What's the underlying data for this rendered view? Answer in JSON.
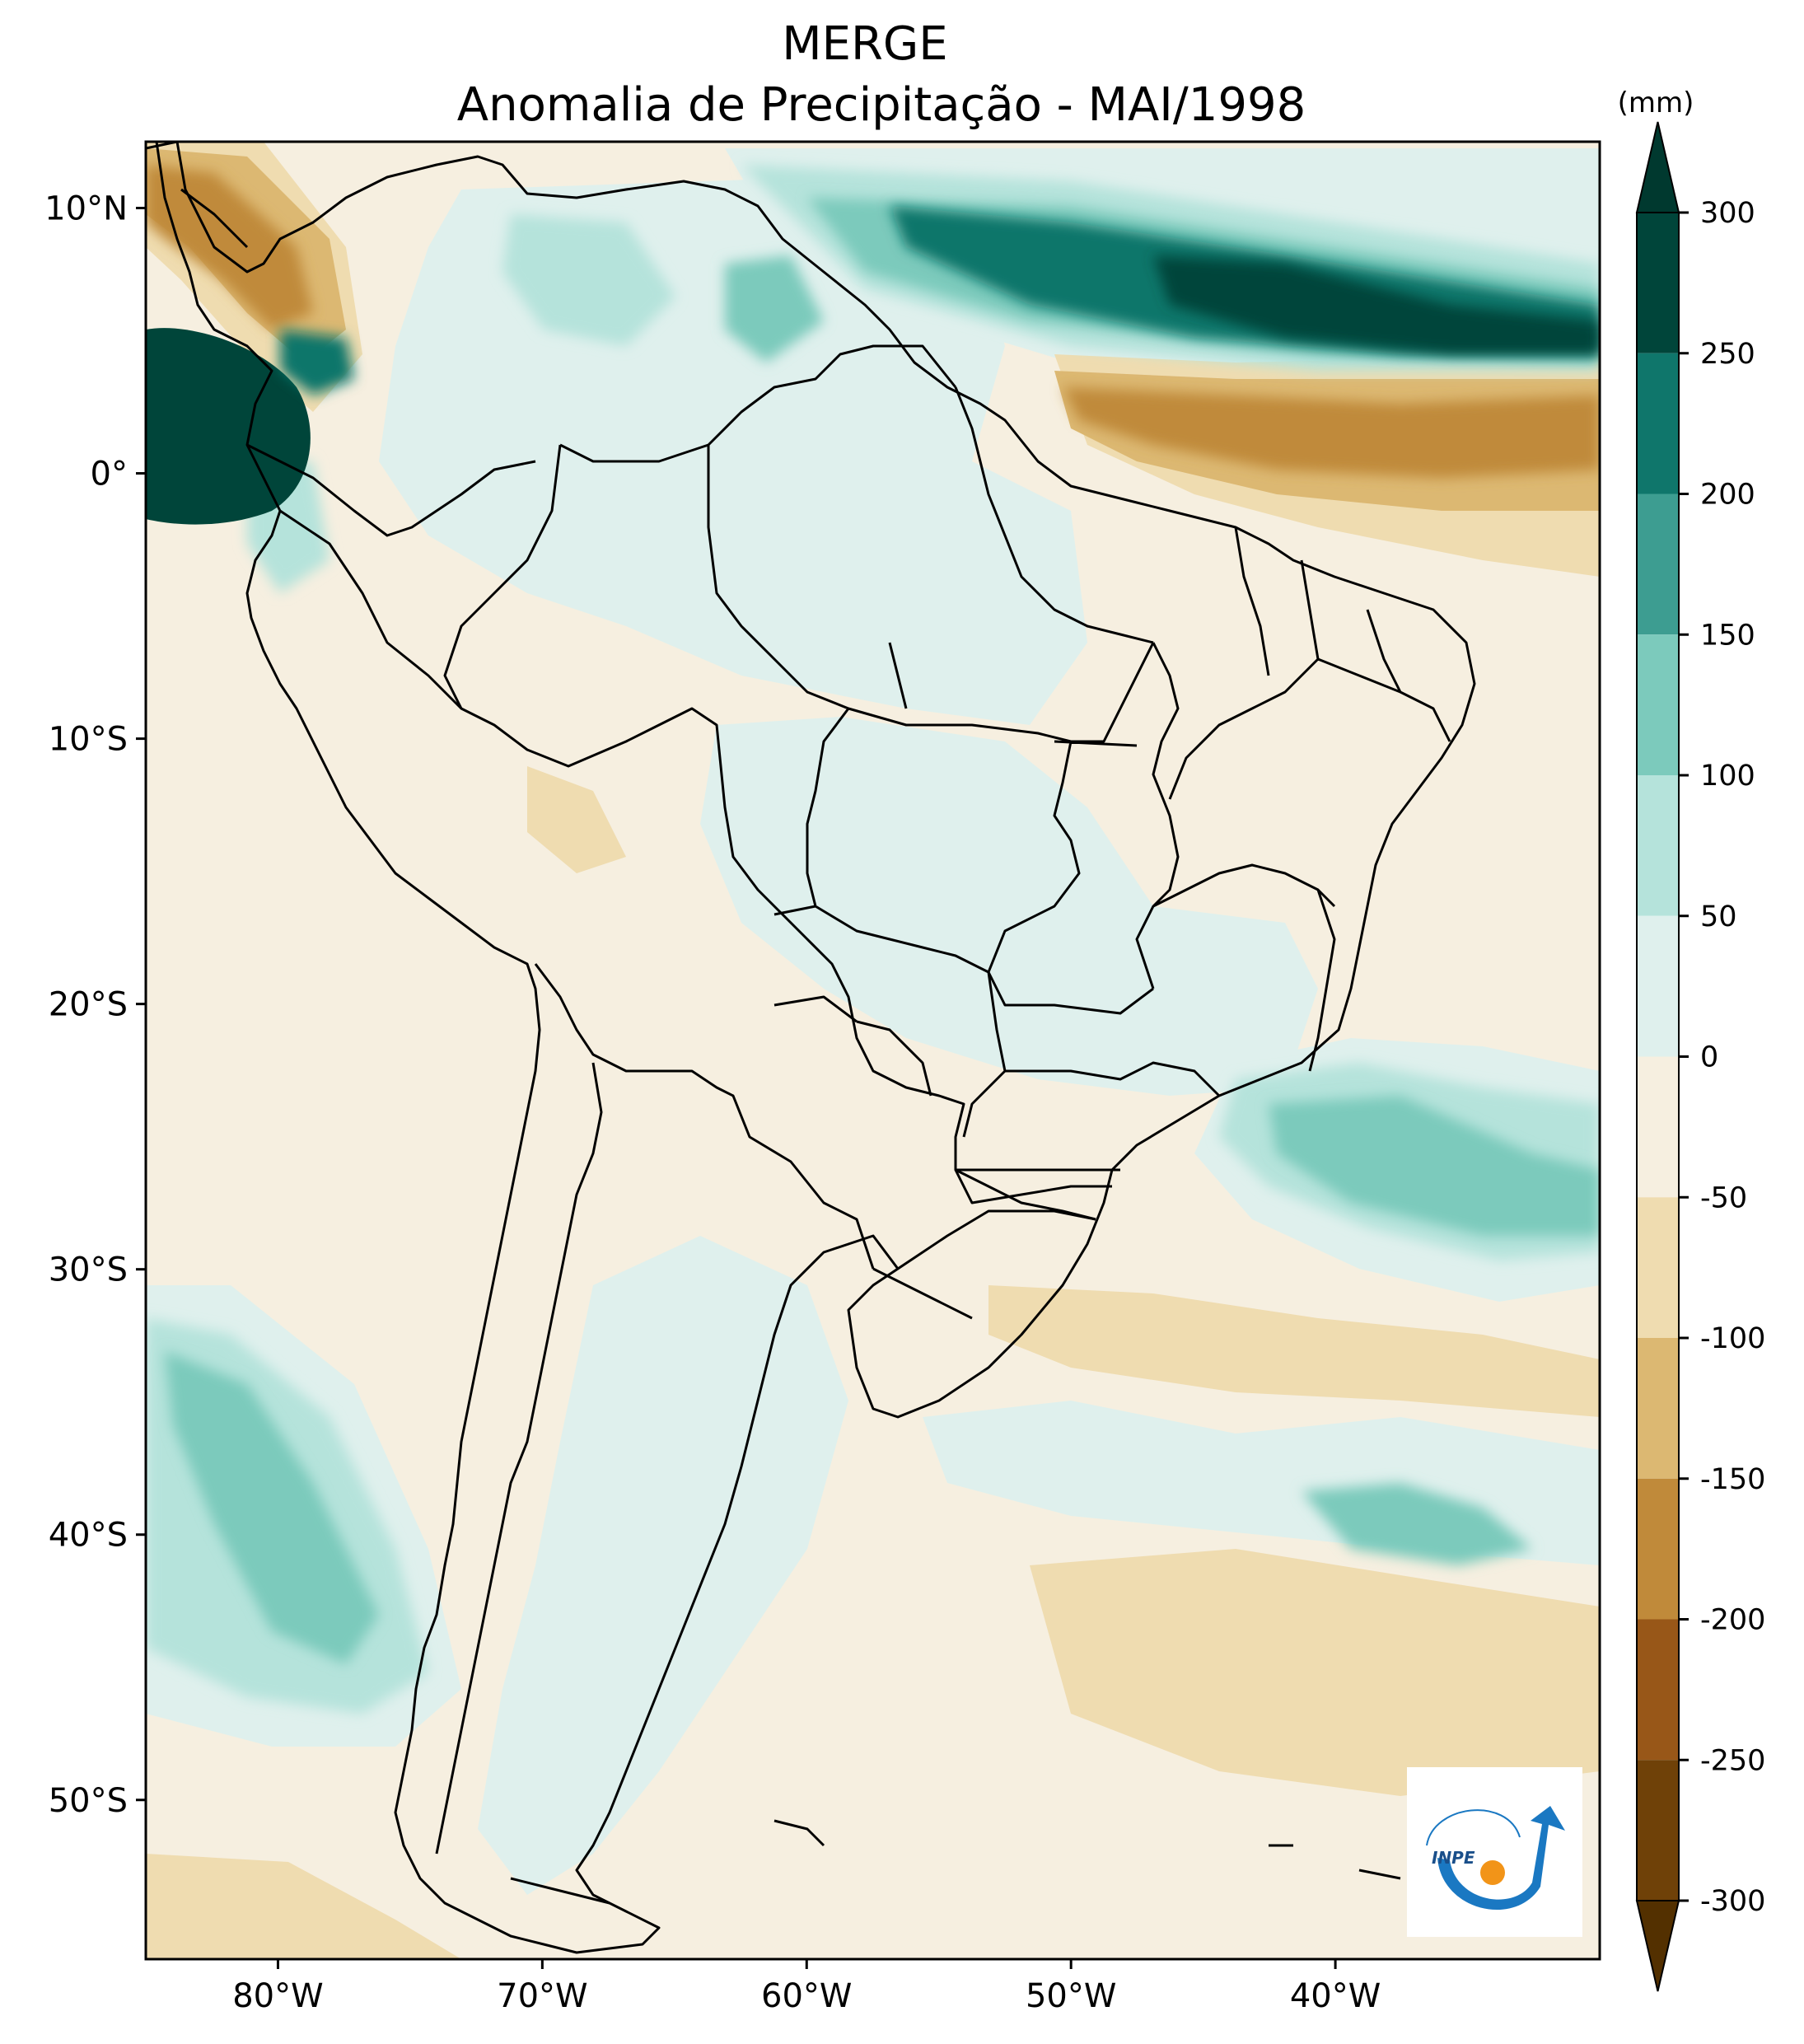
{
  "title": {
    "line1": "MERGE",
    "line2": "Anomalia de Precipitação - MAI/1998"
  },
  "map": {
    "region": "South America",
    "lon_range": [
      -85,
      -30
    ],
    "lat_range": [
      -56,
      12.5
    ],
    "lon_ticks": [
      {
        "value": -80,
        "label": "80°W"
      },
      {
        "value": -70,
        "label": "70°W"
      },
      {
        "value": -60,
        "label": "60°W"
      },
      {
        "value": -50,
        "label": "50°W"
      },
      {
        "value": -40,
        "label": "40°W"
      }
    ],
    "lat_ticks": [
      {
        "value": 10,
        "label": "10°N"
      },
      {
        "value": 0,
        "label": "0°"
      },
      {
        "value": -10,
        "label": "10°S"
      },
      {
        "value": -20,
        "label": "20°S"
      },
      {
        "value": -30,
        "label": "30°S"
      },
      {
        "value": -40,
        "label": "40°S"
      },
      {
        "value": -50,
        "label": "50°S"
      }
    ]
  },
  "colorbar": {
    "unit": "(mm)",
    "levels": [
      {
        "value": 300,
        "label": "300"
      },
      {
        "value": 250,
        "label": "250"
      },
      {
        "value": 200,
        "label": "200"
      },
      {
        "value": 150,
        "label": "150"
      },
      {
        "value": 100,
        "label": "100"
      },
      {
        "value": 50,
        "label": "50"
      },
      {
        "value": 0,
        "label": "0"
      },
      {
        "value": -50,
        "label": "-50"
      },
      {
        "value": -100,
        "label": "-100"
      },
      {
        "value": -150,
        "label": "-150"
      },
      {
        "value": -200,
        "label": "-200"
      },
      {
        "value": -250,
        "label": "-250"
      },
      {
        "value": -300,
        "label": "-300"
      }
    ],
    "bin_colors": [
      "#00453a",
      "#0f766b",
      "#3d9d91",
      "#7ccabc",
      "#b5e3db",
      "#dff0ed",
      "#f6efe0",
      "#efdcb0",
      "#dcb872",
      "#c08a3a",
      "#985718",
      "#6f4108"
    ],
    "extend_top_color": "#00392f",
    "extend_bottom_color": "#533000"
  },
  "logo": {
    "text": "INPE",
    "arc_color": "#1a78c2",
    "dot_color": "#f29418"
  }
}
